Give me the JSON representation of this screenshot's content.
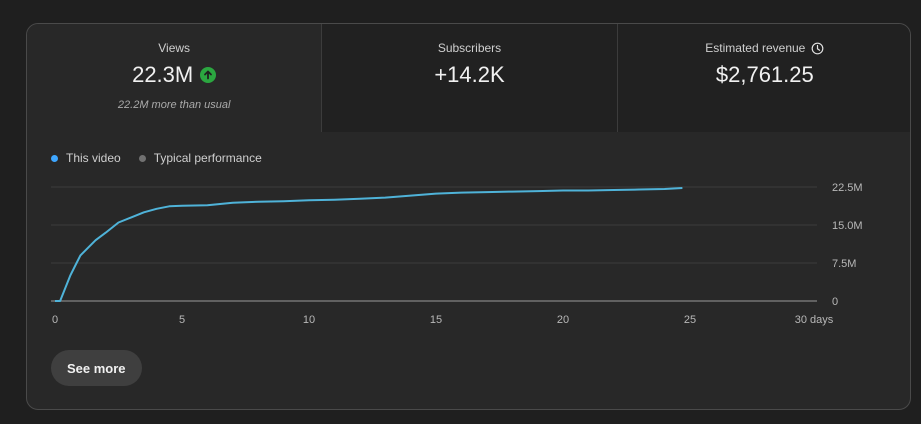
{
  "metrics": {
    "views": {
      "label": "Views",
      "value": "22.3M",
      "sub": "22.2M more than usual"
    },
    "subscribers": {
      "label": "Subscribers",
      "value": "+14.2K"
    },
    "revenue": {
      "label": "Estimated revenue",
      "value": "$2,761.25"
    }
  },
  "legend": {
    "this_video": "This video",
    "typical": "Typical performance"
  },
  "colors": {
    "this_video": "#3ea6ff",
    "line": "#4fb3d9",
    "typical": "#717171",
    "up_badge": "#2ba640"
  },
  "icons": {
    "views_trend": "arrow-up-circle-icon",
    "revenue_info": "clock-icon"
  },
  "see_more_label": "See more",
  "chart_data": {
    "type": "line",
    "xlabel": "",
    "ylabel": "",
    "xlim": [
      0,
      30
    ],
    "ylim": [
      0,
      22.5
    ],
    "x_ticks": [
      "0",
      "5",
      "10",
      "15",
      "20",
      "25",
      "30 days"
    ],
    "x_tick_values": [
      0,
      5,
      10,
      15,
      20,
      25,
      30
    ],
    "y_ticks": [
      "0",
      "7.5M",
      "15.0M",
      "22.5M"
    ],
    "y_tick_values": [
      0,
      7.5,
      15,
      22.5
    ],
    "grid": true,
    "legend_position": "top-left",
    "series": [
      {
        "name": "This video",
        "x": [
          0,
          0.2,
          0.4,
          0.6,
          0.8,
          1.0,
          1.3,
          1.6,
          2.0,
          2.5,
          3.0,
          3.5,
          4.0,
          4.5,
          5,
          6,
          7,
          8,
          9,
          10,
          11,
          12,
          13,
          14,
          15,
          16,
          17,
          18,
          19,
          20,
          21,
          22,
          23,
          24,
          24.7
        ],
        "y": [
          0,
          0,
          2.5,
          5.0,
          7.0,
          9.0,
          10.5,
          12.0,
          13.5,
          15.5,
          16.5,
          17.5,
          18.2,
          18.7,
          18.8,
          18.9,
          19.4,
          19.6,
          19.7,
          19.9,
          20.0,
          20.2,
          20.4,
          20.8,
          21.2,
          21.4,
          21.5,
          21.6,
          21.7,
          21.8,
          21.8,
          21.9,
          22.0,
          22.1,
          22.3
        ]
      }
    ]
  }
}
